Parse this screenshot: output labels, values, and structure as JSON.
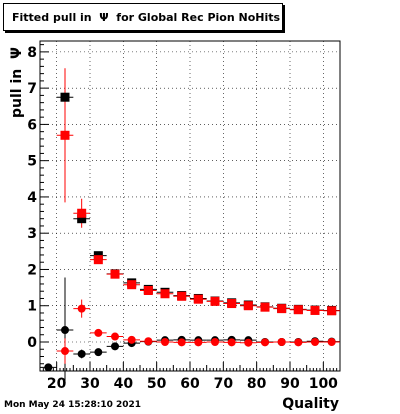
{
  "title": "Fitted pull in  Ψ  for Global Rec Pion NoHits",
  "timestamp": "Mon May 24 15:28:10 2021",
  "chart_data": {
    "type": "scatter",
    "title": "Fitted pull in  Ψ  for Global Rec Pion NoHits",
    "xlabel": "Quality",
    "ylabel": "pull in  Ψ",
    "xlim": [
      15,
      105
    ],
    "ylim": [
      -0.8,
      8.3
    ],
    "xticks": [
      20,
      30,
      40,
      50,
      60,
      70,
      80,
      90,
      100
    ],
    "yticks": [
      0,
      1,
      2,
      3,
      4,
      5,
      6,
      7,
      8
    ],
    "grid": true,
    "series": [
      {
        "marker": "square",
        "color": "#000000",
        "x": [
          22.5,
          27.5,
          32.5,
          37.5,
          42.5,
          47.5,
          52.5,
          57.5,
          62.5,
          67.5,
          72.5,
          77.5,
          82.5,
          87.5,
          92.5,
          97.5,
          102.5
        ],
        "y": [
          6.75,
          3.4,
          2.38,
          1.88,
          1.63,
          1.45,
          1.37,
          1.28,
          1.2,
          1.13,
          1.08,
          1.02,
          0.97,
          0.93,
          0.9,
          0.88,
          0.87
        ],
        "err": [
          0.0,
          0.0,
          0.06,
          0.05,
          0.05,
          0.04,
          0.04,
          0.03,
          0.03,
          0.03,
          0.03,
          0.03,
          0.03,
          0.03,
          0.03,
          0.03,
          0.03
        ]
      },
      {
        "marker": "square",
        "color": "#ff0000",
        "x": [
          22.5,
          27.5,
          32.5,
          37.5,
          42.5,
          47.5,
          52.5,
          57.5,
          62.5,
          67.5,
          72.5,
          77.5,
          82.5,
          87.5,
          92.5,
          97.5,
          102.5
        ],
        "y": [
          5.7,
          3.55,
          2.27,
          1.87,
          1.58,
          1.42,
          1.33,
          1.26,
          1.18,
          1.12,
          1.06,
          1.0,
          0.96,
          0.92,
          0.89,
          0.87,
          0.86
        ],
        "err": [
          1.85,
          0.4,
          0.1,
          0.06,
          0.05,
          0.04,
          0.04,
          0.03,
          0.03,
          0.03,
          0.03,
          0.03,
          0.03,
          0.03,
          0.03,
          0.03,
          0.03
        ]
      },
      {
        "marker": "circle",
        "color": "#000000",
        "x": [
          17.5,
          22.5,
          27.5,
          32.5,
          37.5,
          42.5,
          47.5,
          52.5,
          57.5,
          62.5,
          67.5,
          72.5,
          77.5,
          82.5,
          87.5,
          92.5,
          97.5,
          102.5
        ],
        "y": [
          -0.7,
          0.33,
          -0.33,
          -0.28,
          -0.12,
          -0.03,
          0.01,
          0.05,
          0.06,
          0.05,
          0.05,
          0.06,
          0.05,
          0.0,
          0.0,
          0.0,
          0.02,
          0.01
        ],
        "err": [
          0.0,
          1.45,
          0.12,
          0.06,
          0.04,
          0.03,
          0.03,
          0.03,
          0.03,
          0.03,
          0.03,
          0.03,
          0.03,
          0.03,
          0.03,
          0.03,
          0.03,
          0.03
        ]
      },
      {
        "marker": "circle",
        "color": "#ff0000",
        "x": [
          22.5,
          27.5,
          32.5,
          37.5,
          42.5,
          47.5,
          52.5,
          57.5,
          62.5,
          67.5,
          72.5,
          77.5,
          82.5,
          87.5,
          92.5,
          97.5,
          102.5
        ],
        "y": [
          -0.25,
          0.92,
          0.25,
          0.15,
          0.06,
          0.02,
          0.0,
          -0.01,
          -0.01,
          0.0,
          -0.01,
          -0.02,
          -0.01,
          0.0,
          -0.01,
          0.0,
          0.0
        ],
        "err": [
          0.35,
          0.25,
          0.06,
          0.04,
          0.03,
          0.03,
          0.03,
          0.03,
          0.03,
          0.03,
          0.03,
          0.03,
          0.03,
          0.03,
          0.03,
          0.03,
          0.03
        ]
      }
    ]
  }
}
